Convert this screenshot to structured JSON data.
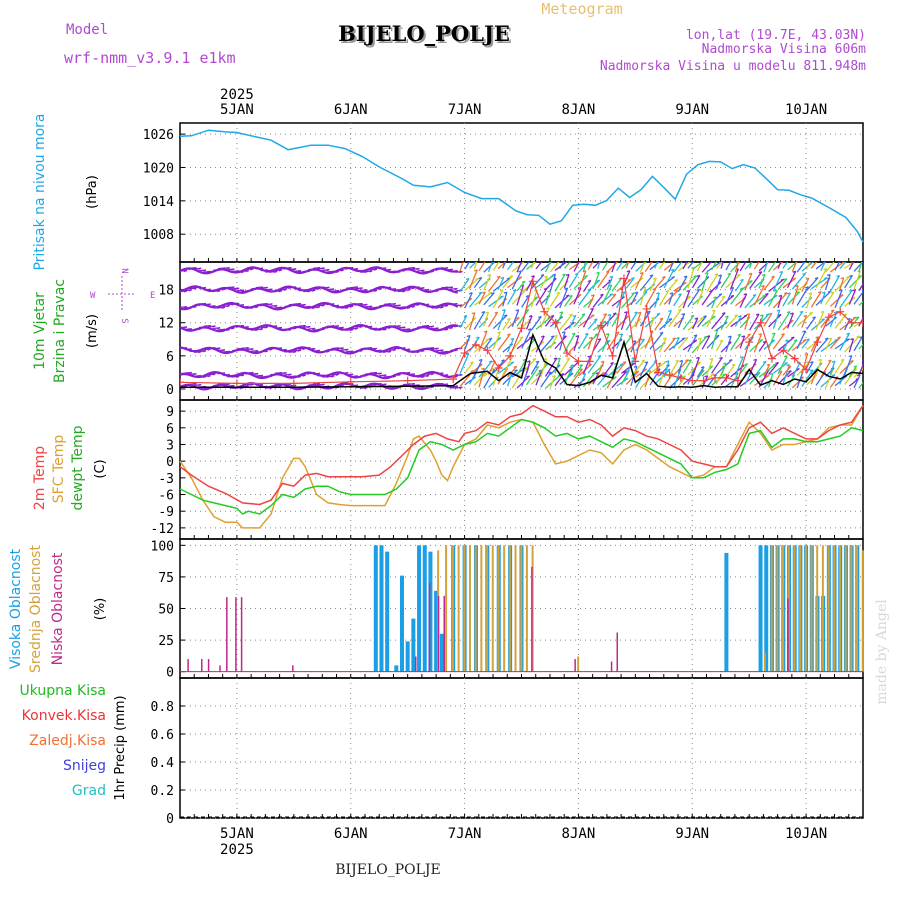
{
  "header": {
    "model_label": "Model",
    "model_name": "wrf-nmm_v3.9.1  e1km",
    "chart_kind": "Meteogram",
    "station_title": "BIJELO_POLJE",
    "coords": "lon,lat (19.7E, 43.03N)",
    "elevation": "Nadmorska Visina 606m",
    "model_elevation": "Nadmorska Visina u modelu 811.948m",
    "footer_station": "BIJELO_POLJE",
    "credit": "made by Angel"
  },
  "colors": {
    "pressure": "#1ea8e8",
    "t2m": "#ee4444",
    "sfc": "#e0a030",
    "dewpt": "#22cc22",
    "wind_speed": "#000000",
    "gust": "#ee4444",
    "cloud_high": "#1a9fe6",
    "cloud_mid": "#d4a23a",
    "cloud_low": "#c0288a",
    "purple": "#b04ad0",
    "grid": "#888888"
  },
  "chart_data": [
    {
      "type": "line",
      "panel": "pressure",
      "label_lines": [
        "Pritisak na nivou mora"
      ],
      "unit": "(hPa)",
      "ylim": [
        1003,
        1028
      ],
      "yticks": [
        1008,
        1014,
        1020,
        1026
      ],
      "x_days": [
        4.5,
        4.6,
        4.75,
        4.9,
        5.0,
        5.1,
        5.3,
        5.45,
        5.55,
        5.65,
        5.8,
        5.95,
        6.1,
        6.25,
        6.45,
        6.55,
        6.7,
        6.85,
        7.0,
        7.15,
        7.3,
        7.45,
        7.55,
        7.65,
        7.75,
        7.85,
        7.95,
        8.05,
        8.15,
        8.25,
        8.35,
        8.45,
        8.55,
        8.65,
        8.75,
        8.85,
        8.95,
        9.05,
        9.15,
        9.25,
        9.35,
        9.45,
        9.55,
        9.65,
        9.75,
        9.85,
        9.95,
        10.05,
        10.2,
        10.35,
        10.45,
        10.5
      ],
      "values": [
        1025.6,
        1025.7,
        1026.7,
        1026.4,
        1026.3,
        1025.8,
        1024.9,
        1023.2,
        1023.6,
        1024.0,
        1024.0,
        1023.4,
        1022.0,
        1020.1,
        1018.0,
        1016.8,
        1016.5,
        1017.3,
        1015.5,
        1014.4,
        1014.4,
        1012.2,
        1011.5,
        1011.4,
        1009.8,
        1010.4,
        1013.2,
        1013.4,
        1013.2,
        1014.1,
        1016.3,
        1014.6,
        1016.0,
        1018.4,
        1016.4,
        1014.3,
        1018.8,
        1020.5,
        1021.1,
        1021.0,
        1019.8,
        1020.5,
        1019.9,
        1018.0,
        1016.0,
        1015.9,
        1015.1,
        1014.5,
        1012.8,
        1011.0,
        1008.5,
        1006.6
      ]
    },
    {
      "type": "line",
      "panel": "wind",
      "label_lines": [
        "10m Vjetar",
        "Brzina i Pravac"
      ],
      "unit": "(m/s)",
      "compass": {
        "n": "N",
        "s": "S",
        "w": "W",
        "e": "E"
      },
      "ylim": [
        -2,
        23
      ],
      "yticks": [
        0,
        6,
        12,
        18
      ],
      "series": [
        {
          "name": "speed",
          "x_days": [
            4.5,
            5.0,
            5.5,
            6.0,
            6.5,
            6.9,
            7.05,
            7.2,
            7.3,
            7.4,
            7.5,
            7.6,
            7.7,
            7.8,
            7.9,
            8.0,
            8.1,
            8.2,
            8.3,
            8.4,
            8.5,
            8.6,
            8.7,
            8.8,
            8.9,
            9.0,
            9.1,
            9.2,
            9.3,
            9.4,
            9.5,
            9.6,
            9.7,
            9.8,
            9.9,
            10.0,
            10.1,
            10.2,
            10.3,
            10.4,
            10.5
          ],
          "values": [
            0.3,
            0.3,
            0.3,
            0.4,
            0.5,
            0.6,
            2.8,
            3.2,
            1.5,
            3.0,
            2.0,
            9.8,
            5.0,
            3.8,
            0.8,
            0.6,
            1.2,
            2.5,
            2.0,
            8.5,
            1.2,
            2.8,
            0.5,
            0.3,
            0.4,
            0.3,
            0.6,
            0.3,
            0.4,
            0.4,
            3.5,
            0.7,
            1.5,
            0.8,
            1.8,
            1.3,
            3.5,
            2.3,
            1.8,
            3.0,
            2.8
          ]
        },
        {
          "name": "gust",
          "x_days": [
            4.5,
            5.0,
            5.5,
            6.0,
            6.5,
            6.9,
            7.0,
            7.1,
            7.2,
            7.3,
            7.4,
            7.5,
            7.6,
            7.7,
            7.8,
            7.9,
            8.0,
            8.1,
            8.2,
            8.3,
            8.4,
            8.5,
            8.6,
            8.7,
            8.8,
            8.9,
            9.0,
            9.1,
            9.2,
            9.3,
            9.4,
            9.5,
            9.6,
            9.7,
            9.8,
            9.9,
            10.0,
            10.1,
            10.2,
            10.3,
            10.4,
            10.5
          ],
          "values": [
            1.2,
            1.0,
            1.0,
            1.3,
            1.5,
            1.8,
            6.5,
            8.0,
            7.0,
            3.8,
            6.0,
            11.0,
            19.5,
            14.0,
            12.0,
            6.5,
            5.0,
            5.0,
            11.5,
            6.0,
            20.0,
            5.0,
            14.5,
            3.0,
            2.5,
            2.0,
            1.5,
            1.5,
            2.0,
            2.0,
            1.5,
            8.5,
            12.0,
            5.5,
            7.0,
            5.5,
            3.5,
            8.5,
            13.0,
            14.0,
            12.0,
            12.0
          ]
        }
      ]
    },
    {
      "type": "line",
      "panel": "temperature",
      "label_lines": [
        "2m Temp",
        "SFC Temp",
        "dewpt Temp"
      ],
      "unit": "(C)",
      "ylim": [
        -14,
        11
      ],
      "yticks": [
        -12,
        -9,
        -6,
        -3,
        0,
        3,
        6,
        9
      ],
      "series": [
        {
          "name": "2m Temp",
          "x_days": [
            4.5,
            4.6,
            4.75,
            4.9,
            5.05,
            5.2,
            5.3,
            5.4,
            5.5,
            5.6,
            5.7,
            5.8,
            5.95,
            6.1,
            6.25,
            6.35,
            6.45,
            6.55,
            6.65,
            6.75,
            6.85,
            6.95,
            7.0,
            7.1,
            7.2,
            7.3,
            7.4,
            7.5,
            7.6,
            7.7,
            7.8,
            7.9,
            8.0,
            8.1,
            8.2,
            8.3,
            8.4,
            8.5,
            8.6,
            8.7,
            8.8,
            8.9,
            9.0,
            9.1,
            9.2,
            9.3,
            9.4,
            9.5,
            9.6,
            9.7,
            9.8,
            9.9,
            10.0,
            10.1,
            10.2,
            10.3,
            10.4,
            10.5
          ],
          "values": [
            -1,
            -2.5,
            -4.5,
            -5.8,
            -7.5,
            -7.8,
            -7,
            -4,
            -4.5,
            -2.5,
            -2.2,
            -2.8,
            -2.8,
            -2.8,
            -2.5,
            -1,
            1,
            3,
            4.5,
            5,
            4,
            3.5,
            5,
            5.5,
            7,
            6.5,
            8,
            8.5,
            10,
            9,
            8,
            8,
            7,
            7.5,
            6.5,
            4.5,
            6,
            5.5,
            4.5,
            4,
            3,
            2,
            0,
            -0.5,
            -1,
            -1,
            2,
            6,
            7,
            5,
            6,
            5,
            4,
            4,
            5.5,
            6.5,
            7,
            10
          ]
        },
        {
          "name": "SFC Temp",
          "x_days": [
            4.5,
            4.6,
            4.7,
            4.8,
            4.9,
            5.0,
            5.05,
            5.1,
            5.2,
            5.3,
            5.4,
            5.5,
            5.55,
            5.6,
            5.7,
            5.8,
            5.9,
            6.0,
            6.1,
            6.2,
            6.3,
            6.4,
            6.5,
            6.55,
            6.6,
            6.7,
            6.75,
            6.8,
            6.85,
            6.9,
            7.0,
            7.1,
            7.2,
            7.3,
            7.4,
            7.5,
            7.6,
            7.7,
            7.8,
            7.9,
            8.0,
            8.1,
            8.2,
            8.3,
            8.4,
            8.5,
            8.6,
            8.7,
            8.8,
            8.9,
            9.0,
            9.1,
            9.2,
            9.3,
            9.4,
            9.5,
            9.6,
            9.7,
            9.8,
            9.9,
            10.0,
            10.1,
            10.2,
            10.3,
            10.4,
            10.5
          ],
          "values": [
            0,
            -3,
            -7,
            -10,
            -11,
            -11,
            -12,
            -12,
            -12,
            -9.5,
            -3,
            0.5,
            0.5,
            -1,
            -6,
            -7.5,
            -7.8,
            -8,
            -8,
            -8,
            -8,
            -4,
            1,
            4,
            4.5,
            2,
            0,
            -2.5,
            -3.5,
            -1,
            3,
            4,
            6.5,
            6,
            7,
            7.5,
            7,
            3,
            -0.5,
            0,
            1,
            2,
            1.5,
            -0.5,
            2,
            3,
            2,
            0.5,
            -1,
            -2,
            -3,
            -2.5,
            -1,
            -1,
            3,
            7,
            5,
            2,
            3,
            3,
            3.5,
            4,
            6,
            6.5,
            6.5,
            10
          ]
        },
        {
          "name": "dewpt Temp",
          "x_days": [
            4.5,
            4.6,
            4.7,
            4.8,
            4.9,
            5.0,
            5.05,
            5.1,
            5.2,
            5.3,
            5.4,
            5.5,
            5.6,
            5.7,
            5.8,
            5.9,
            6.0,
            6.1,
            6.2,
            6.3,
            6.4,
            6.5,
            6.6,
            6.7,
            6.8,
            6.9,
            7.0,
            7.1,
            7.2,
            7.3,
            7.4,
            7.5,
            7.6,
            7.7,
            7.8,
            7.9,
            8.0,
            8.1,
            8.2,
            8.3,
            8.4,
            8.5,
            8.6,
            8.7,
            8.8,
            8.9,
            9.0,
            9.1,
            9.2,
            9.3,
            9.4,
            9.5,
            9.6,
            9.7,
            9.8,
            9.9,
            10.0,
            10.1,
            10.2,
            10.3,
            10.4,
            10.5
          ],
          "values": [
            -5,
            -6,
            -7,
            -7.5,
            -8,
            -8.5,
            -9.5,
            -9,
            -9.5,
            -8,
            -6,
            -6.5,
            -5,
            -4.5,
            -4.5,
            -5.5,
            -6,
            -6,
            -6,
            -6,
            -5,
            -3,
            2,
            3.5,
            3,
            2,
            3,
            3.5,
            5,
            4.5,
            6,
            7.5,
            7,
            6,
            4.5,
            5,
            4,
            4.5,
            3.5,
            2.5,
            4,
            3.5,
            2.5,
            1.5,
            0.5,
            -0.5,
            -3,
            -3,
            -2,
            -1.5,
            -0.5,
            5,
            5.5,
            2.5,
            4,
            4,
            3.5,
            3.5,
            4,
            4.5,
            6,
            5.5
          ]
        }
      ]
    },
    {
      "type": "bar",
      "panel": "clouds",
      "label_lines": [
        "Visoka Oblacnost",
        "Srednja Oblacnost",
        "Niska Oblacnost"
      ],
      "unit": "(%)",
      "ylim": [
        -5,
        105
      ],
      "yticks": [
        0,
        25,
        50,
        75,
        100
      ],
      "series": [
        {
          "name": "Visoka Oblacnost",
          "x_days": [
            6.22,
            6.27,
            6.32,
            6.4,
            6.45,
            6.5,
            6.55,
            6.6,
            6.65,
            6.7,
            6.75,
            6.8,
            6.9,
            7.0,
            7.1,
            7.2,
            7.3,
            7.4,
            7.5,
            9.3,
            9.6,
            9.65,
            9.7,
            9.75,
            9.8,
            9.85,
            9.9,
            9.95,
            10.0,
            10.05,
            10.1,
            10.15,
            10.2,
            10.25,
            10.3,
            10.35,
            10.4,
            10.45
          ],
          "values": [
            100,
            100,
            95,
            5,
            76,
            24,
            42,
            100,
            100,
            95,
            64,
            30,
            100,
            100,
            100,
            100,
            100,
            100,
            100,
            94,
            100,
            100,
            100,
            100,
            100,
            100,
            100,
            100,
            100,
            100,
            60,
            60,
            100,
            100,
            100,
            100,
            100,
            100
          ]
        },
        {
          "name": "Srednja Oblacnost",
          "x_days": [
            6.75,
            6.82,
            6.88,
            6.93,
            6.98,
            7.03,
            7.08,
            7.13,
            7.18,
            7.23,
            7.28,
            7.33,
            7.38,
            7.43,
            7.48,
            7.53,
            7.58,
            7.98,
            9.62,
            9.68,
            9.73,
            9.78,
            9.83,
            9.88,
            9.93,
            9.98,
            10.03,
            10.08,
            10.13,
            10.18,
            10.23,
            10.28,
            10.33,
            10.38,
            10.43,
            10.48
          ],
          "values": [
            96,
            100,
            100,
            100,
            100,
            100,
            100,
            100,
            100,
            100,
            100,
            100,
            100,
            100,
            100,
            100,
            100,
            12,
            15,
            100,
            100,
            100,
            100,
            100,
            100,
            100,
            100,
            100,
            100,
            100,
            100,
            100,
            100,
            100,
            100,
            96
          ]
        },
        {
          "name": "Niska Oblacnost",
          "x_days": [
            4.58,
            4.7,
            4.76,
            4.86,
            4.92,
            5.0,
            5.05,
            5.5,
            6.58,
            6.7,
            6.78,
            6.83,
            7.6,
            7.98,
            8.3,
            8.35,
            9.85
          ],
          "values": [
            10,
            10,
            10,
            5,
            59,
            59,
            59,
            5,
            12,
            70,
            60,
            60,
            83,
            10,
            8,
            31,
            58
          ]
        }
      ]
    },
    {
      "type": "line",
      "panel": "precip",
      "label_lines": [
        "1hr Precip (mm)"
      ],
      "unit": "",
      "ylim": [
        0,
        1.0
      ],
      "yticks": [
        0,
        0.2,
        0.4,
        0.6,
        0.8
      ],
      "series": [
        {
          "name": "Ukupna Kisa",
          "values": []
        },
        {
          "name": "Konvek.Kisa",
          "values": []
        },
        {
          "name": "Zaledj.Kisa",
          "values": []
        },
        {
          "name": "Snijeg",
          "values": []
        },
        {
          "name": "Grad",
          "values": []
        }
      ]
    }
  ],
  "x_axis": {
    "year": "2025",
    "range_days": [
      4.5,
      10.5
    ],
    "tick_days": [
      5,
      6,
      7,
      8,
      9,
      10
    ],
    "tick_labels": [
      "5JAN",
      "6JAN",
      "7JAN",
      "8JAN",
      "9JAN",
      "10JAN"
    ]
  }
}
